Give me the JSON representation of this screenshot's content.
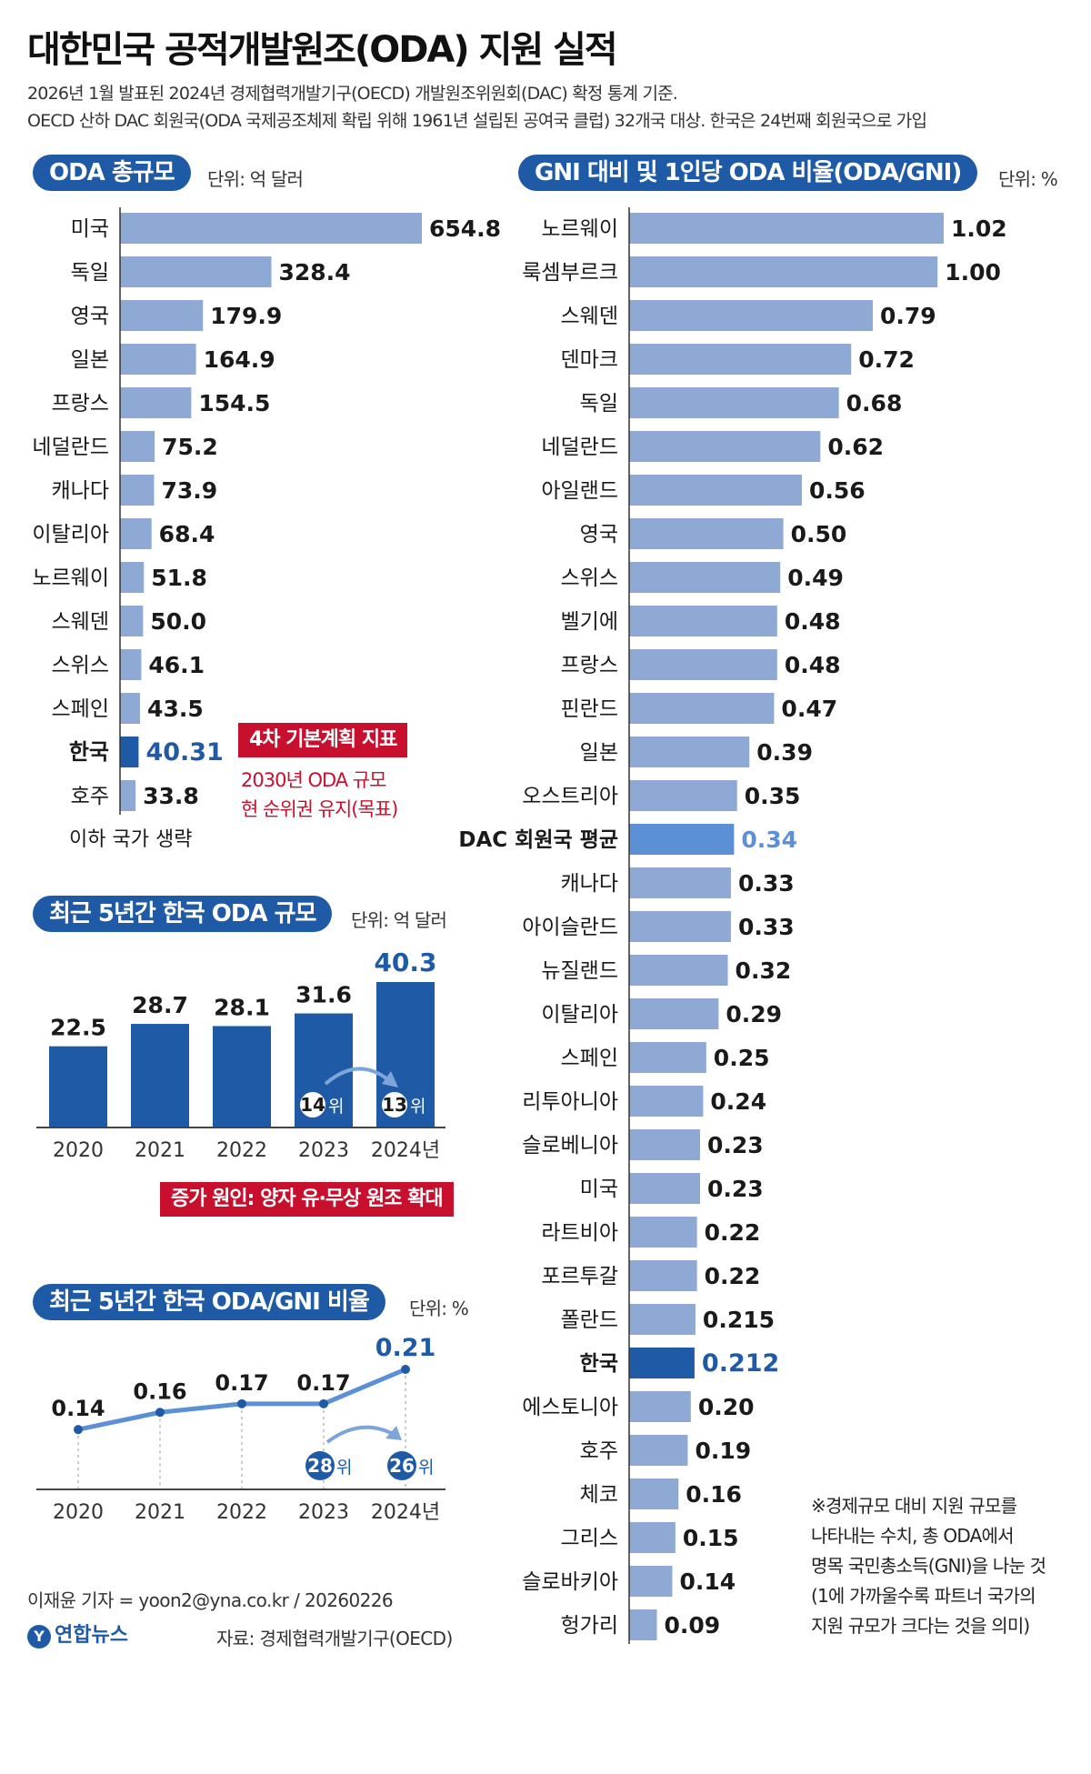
{
  "title": "대한민국 공적개발원조(ODA) 지원 실적",
  "subtitle_lines": [
    "2026년 1월 발표된 2024년 경제협력개발기구(OECD) 개발원조위원회(DAC) 확정 통계 기준.",
    "OECD 산하 DAC 회원국(ODA 국제공조체제 확립 위해 1961년 설립된 공여국 클럽) 32개국 대상. 한국은 24번째 회원국으로 가입"
  ],
  "colors": {
    "bar": "#8ea9d3",
    "highlight": "#1f5aa6",
    "accent_red": "#c8102e",
    "dac_avg_text": "#5b8fd6"
  },
  "chart_data": [
    {
      "type": "bar",
      "orientation": "horizontal",
      "title": "ODA 총규모",
      "unit": "단위: 억 달러",
      "categories": [
        "미국",
        "독일",
        "영국",
        "일본",
        "프랑스",
        "네덜란드",
        "캐나다",
        "이탈리아",
        "노르웨이",
        "스웨덴",
        "스위스",
        "스페인",
        "한국",
        "호주"
      ],
      "values": [
        654.8,
        328.4,
        179.9,
        164.9,
        154.5,
        75.2,
        73.9,
        68.4,
        51.8,
        50.0,
        46.1,
        43.5,
        40.31,
        33.8
      ],
      "value_labels": [
        "654.8",
        "328.4",
        "179.9",
        "164.9",
        "154.5",
        "75.2",
        "73.9",
        "68.4",
        "51.8",
        "50.0",
        "46.1",
        "43.5",
        "40.31",
        "33.8"
      ],
      "highlight": "한국",
      "footer_label": "이하 국가 생략",
      "callout": {
        "title": "4차 기본계획 지표",
        "lines": [
          "2030년 ODA 규모",
          "현 순위권 유지(목표)"
        ]
      }
    },
    {
      "type": "bar",
      "orientation": "horizontal",
      "title": "GNI 대비 및 1인당 ODA 비율(ODA/GNI)",
      "unit": "단위: %",
      "categories": [
        "노르웨이",
        "룩셈부르크",
        "스웨덴",
        "덴마크",
        "독일",
        "네덜란드",
        "아일랜드",
        "영국",
        "스위스",
        "벨기에",
        "프랑스",
        "핀란드",
        "일본",
        "오스트리아",
        "DAC 회원국 평균",
        "캐나다",
        "아이슬란드",
        "뉴질랜드",
        "이탈리아",
        "스페인",
        "리투아니아",
        "슬로베니아",
        "미국",
        "라트비아",
        "포르투갈",
        "폴란드",
        "한국",
        "에스토니아",
        "호주",
        "체코",
        "그리스",
        "슬로바키아",
        "헝가리"
      ],
      "values": [
        1.02,
        1.0,
        0.79,
        0.72,
        0.68,
        0.62,
        0.56,
        0.5,
        0.49,
        0.48,
        0.48,
        0.47,
        0.39,
        0.35,
        0.34,
        0.33,
        0.33,
        0.32,
        0.29,
        0.25,
        0.24,
        0.23,
        0.23,
        0.22,
        0.22,
        0.215,
        0.212,
        0.2,
        0.19,
        0.16,
        0.15,
        0.14,
        0.09
      ],
      "value_labels": [
        "1.02",
        "1.00",
        "0.79",
        "0.72",
        "0.68",
        "0.62",
        "0.56",
        "0.50",
        "0.49",
        "0.48",
        "0.48",
        "0.47",
        "0.39",
        "0.35",
        "0.34",
        "0.33",
        "0.33",
        "0.32",
        "0.29",
        "0.25",
        "0.24",
        "0.23",
        "0.23",
        "0.22",
        "0.22",
        "0.215",
        "0.212",
        "0.20",
        "0.19",
        "0.16",
        "0.15",
        "0.14",
        "0.09"
      ],
      "highlight": "한국",
      "average": "DAC 회원국 평균",
      "note_lines": [
        "※경제규모 대비 지원 규모를",
        "나타내는 수치, 총 ODA에서",
        "명목 국민총소득(GNI)을 나눈 것",
        "(1에 가까울수록 파트너 국가의",
        "지원 규모가 크다는 것을 의미)"
      ]
    },
    {
      "type": "bar",
      "title": "최근 5년간 한국 ODA 규모",
      "unit": "단위: 억 달러",
      "categories": [
        "2020",
        "2021",
        "2022",
        "2023",
        "2024년"
      ],
      "values": [
        22.5,
        28.7,
        28.1,
        31.6,
        40.3
      ],
      "value_labels": [
        "22.5",
        "28.7",
        "28.1",
        "31.6",
        "40.3"
      ],
      "rank_badges": [
        {
          "category": "2023",
          "num": "14",
          "suffix": "위"
        },
        {
          "category": "2024년",
          "num": "13",
          "suffix": "위"
        }
      ],
      "callout": "증가 원인: 양자 유·무상 원조 확대"
    },
    {
      "type": "line",
      "title": "최근 5년간 한국 ODA/GNI 비율",
      "unit": "단위: %",
      "categories": [
        "2020",
        "2021",
        "2022",
        "2023",
        "2024년"
      ],
      "values": [
        0.14,
        0.16,
        0.17,
        0.17,
        0.21
      ],
      "value_labels": [
        "0.14",
        "0.16",
        "0.17",
        "0.17",
        "0.21"
      ],
      "rank_badges": [
        {
          "category": "2023",
          "num": "28",
          "suffix": "위"
        },
        {
          "category": "2024년",
          "num": "26",
          "suffix": "위"
        }
      ]
    }
  ],
  "footer": {
    "reporter": "이재윤 기자 = yoon2@yna.co.kr / 20260226",
    "logo_text": "연합뉴스",
    "source": "자료: 경제협력개발기구(OECD)"
  }
}
